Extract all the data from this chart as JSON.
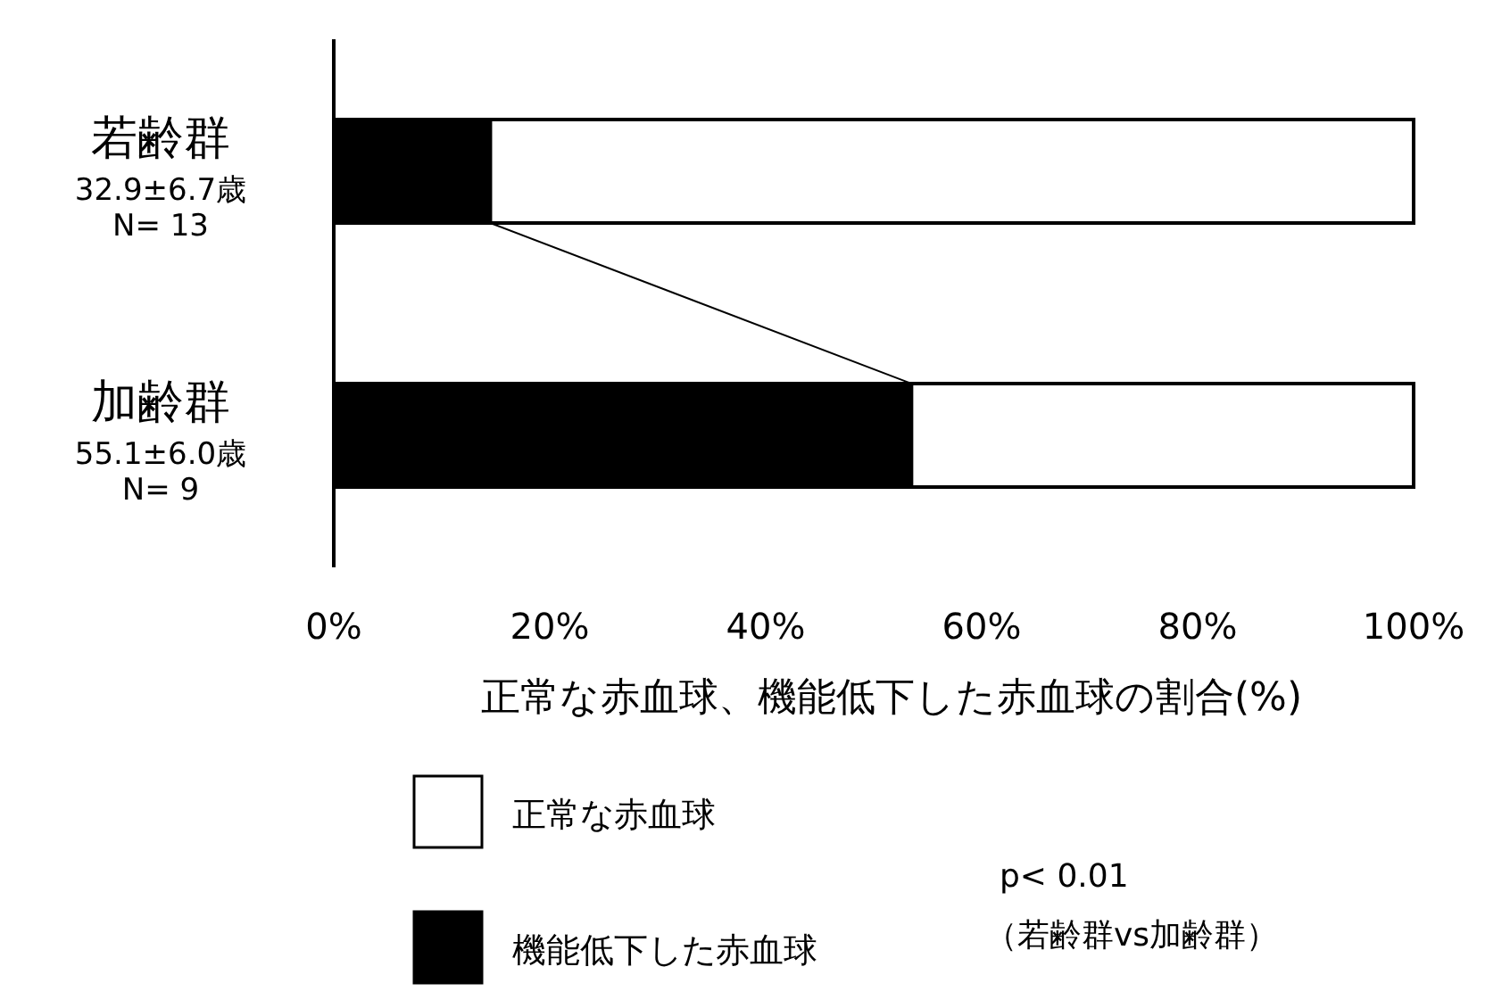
{
  "chart_data": {
    "type": "bar",
    "orientation": "horizontal",
    "stacked": true,
    "categories": [
      "若齢群\n32.9±6.7歳\nN= 13",
      "加齢群\n55.1±6.0歳\nN= 9"
    ],
    "series": [
      {
        "name": "機能低下した赤血球",
        "color": "#000000",
        "values": [
          14.5,
          53.5
        ]
      },
      {
        "name": "正常な赤血球",
        "color": "#ffffff",
        "values": [
          85.5,
          46.5
        ]
      }
    ],
    "xlim": [
      0,
      100
    ],
    "xticks": [
      {
        "value": 0,
        "label": "0%"
      },
      {
        "value": 20,
        "label": "20%"
      },
      {
        "value": 40,
        "label": "40%"
      },
      {
        "value": 60,
        "label": "60%"
      },
      {
        "value": 80,
        "label": "80%"
      },
      {
        "value": 100,
        "label": "100%"
      }
    ],
    "xlabel": "正常な赤血球、機能低下した赤血球の割合(%)",
    "annotations": [
      "p< 0.01\n（若齢群vs加齢群）"
    ],
    "legend": "bottom",
    "grid": false
  }
}
